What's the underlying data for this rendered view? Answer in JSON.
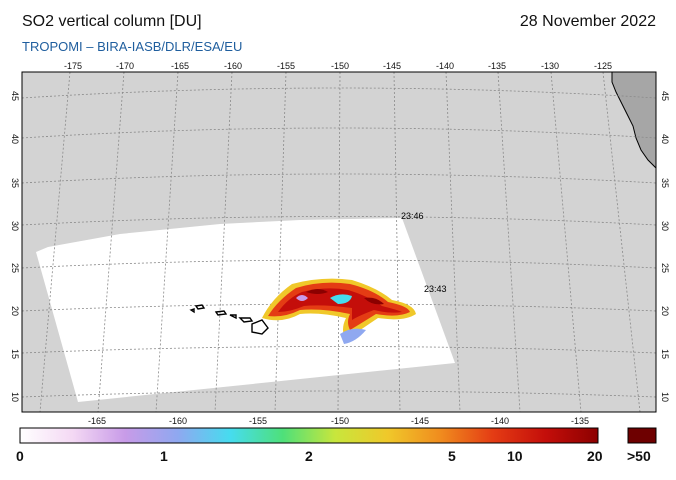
{
  "header": {
    "title": "SO2 vertical column [DU]",
    "date": "28 November 2022",
    "subtitle": "TROPOMI  –  BIRA-IASB/DLR/ESA/EU"
  },
  "map": {
    "top_lon_labels": [
      "-175",
      "-170",
      "-165",
      "-160",
      "-155",
      "-150",
      "-145",
      "-140",
      "-135",
      "-130",
      "-125"
    ],
    "bottom_lon_labels": [
      "-165",
      "-160",
      "-155",
      "-150",
      "-145",
      "-140",
      "-135"
    ],
    "left_lat_labels": [
      "45",
      "40",
      "35",
      "30",
      "25",
      "20",
      "15",
      "10"
    ],
    "right_lat_labels": [
      "45",
      "40",
      "35",
      "30",
      "25",
      "20",
      "15",
      "10"
    ],
    "overpass_times": [
      "23:46",
      "23:43"
    ],
    "colors": {
      "ocean": "#d3d3d3",
      "land": "#a6a6a6",
      "swath": "#ffffff",
      "grid": "#8a8a8a"
    }
  },
  "colorbar": {
    "labels": [
      "0",
      "1",
      "2",
      "5",
      "10",
      "20",
      ">50"
    ],
    "stops": [
      "#ffffff",
      "#f4d9f4",
      "#c89be8",
      "#8fa8f0",
      "#46dcef",
      "#4ee07a",
      "#c8e63c",
      "#f0c82a",
      "#f08c1e",
      "#e43c14",
      "#c40e0a",
      "#8c0000"
    ],
    "overflow_color": "#6e0000"
  }
}
